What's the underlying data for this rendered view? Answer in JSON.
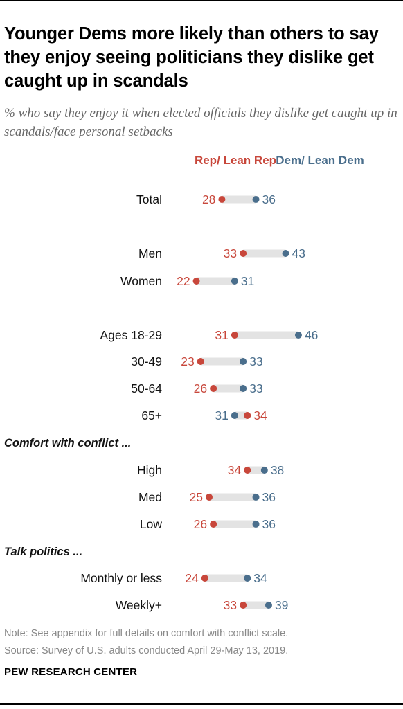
{
  "title": "Younger Dems more likely than others to say they enjoy seeing politicians they dislike get caught up in scandals",
  "subtitle": "% who say they enjoy it when elected officials they dislike get caught up in scandals/face personal setbacks",
  "colors": {
    "rep": "#c8473b",
    "dem": "#4a6e8c",
    "connector": "#e3e3e3"
  },
  "legend": {
    "rep": "Rep/ Lean Rep",
    "dem": "Dem/ Lean Dem"
  },
  "chart_data": {
    "type": "dot",
    "series": [
      {
        "name": "Rep/ Lean Rep",
        "key": "rep"
      },
      {
        "name": "Dem/ Lean Dem",
        "key": "dem"
      }
    ],
    "sections": [
      {
        "heading": "Comfort with conflict ...",
        "before_row": "High"
      },
      {
        "heading": "Talk politics ...",
        "before_row": "Monthly or less"
      }
    ],
    "rows": [
      {
        "label": "Total",
        "rep": 28,
        "dem": 36
      },
      {
        "label": "Men",
        "rep": 33,
        "dem": 43
      },
      {
        "label": "Women",
        "rep": 22,
        "dem": 31
      },
      {
        "label": "Ages 18-29",
        "rep": 31,
        "dem": 46
      },
      {
        "label": "30-49",
        "rep": 23,
        "dem": 33
      },
      {
        "label": "50-64",
        "rep": 26,
        "dem": 33
      },
      {
        "label": "65+",
        "rep": 34,
        "dem": 31
      },
      {
        "label": "High",
        "rep": 34,
        "dem": 38
      },
      {
        "label": "Med",
        "rep": 25,
        "dem": 36
      },
      {
        "label": "Low",
        "rep": 26,
        "dem": 36
      },
      {
        "label": "Monthly or less",
        "rep": 24,
        "dem": 34
      },
      {
        "label": "Weekly+",
        "rep": 33,
        "dem": 39
      }
    ]
  },
  "notes": {
    "note": "Note: See appendix for full details on comfort with conflict scale.",
    "source": "Source: Survey of U.S. adults conducted April 29-May 13, 2019."
  },
  "brand": "PEW RESEARCH CENTER"
}
